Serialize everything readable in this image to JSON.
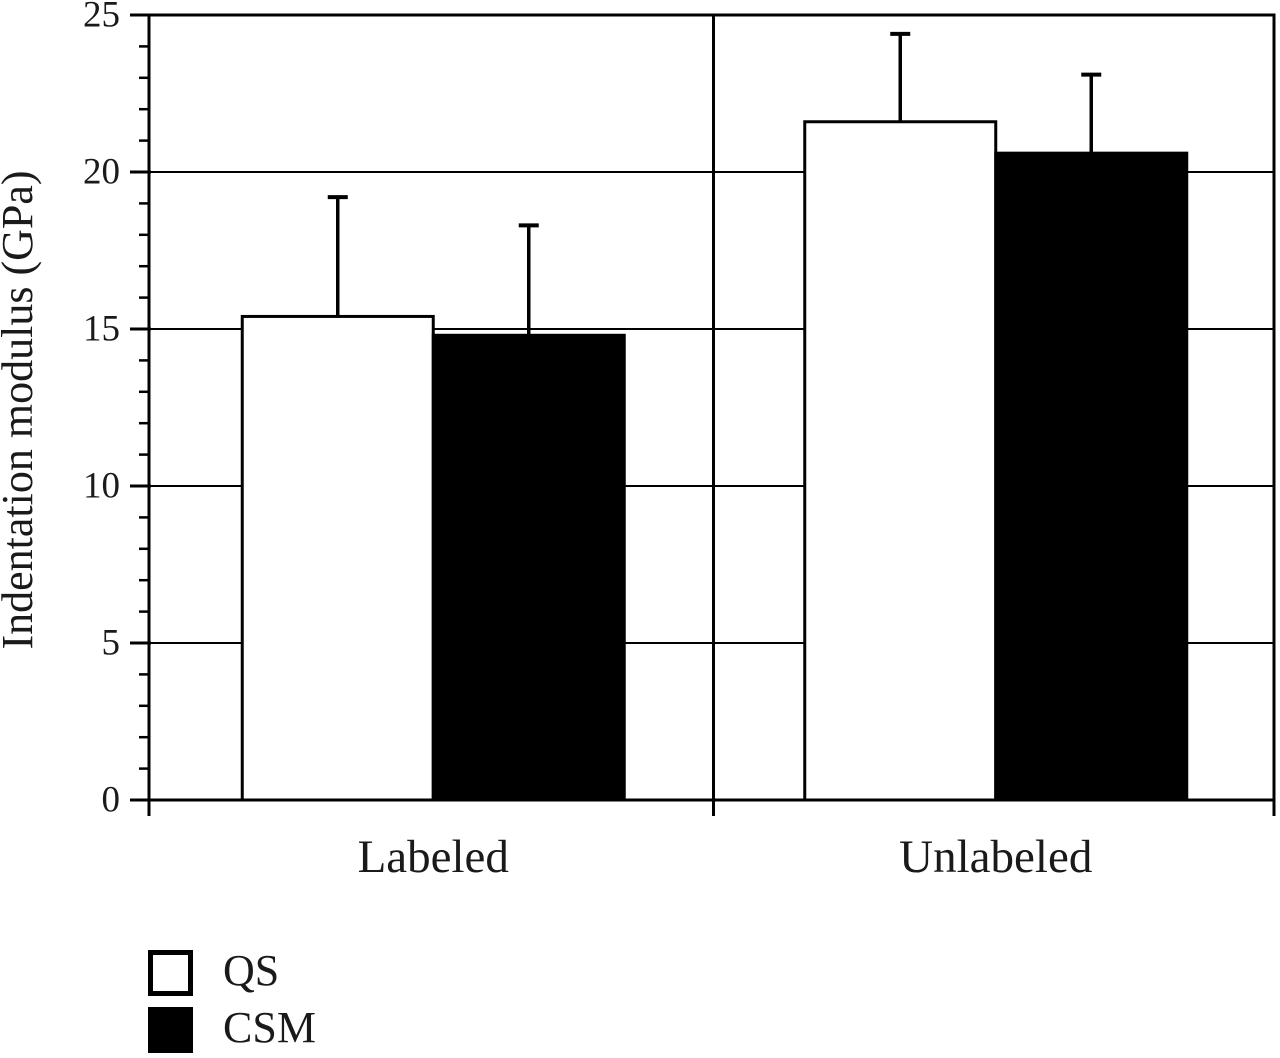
{
  "figure": {
    "background": "#ffffff",
    "ink": "#000000"
  },
  "chart_data": {
    "type": "bar",
    "title": "",
    "xlabel": "",
    "ylabel": "Indentation modulus (GPa)",
    "categories": [
      "Labeled",
      "Unlabeled"
    ],
    "series": [
      {
        "name": "QS",
        "fill": "#ffffff",
        "values": [
          15.4,
          21.6
        ],
        "errors_plus": [
          3.8,
          2.8
        ]
      },
      {
        "name": "CSM",
        "fill": "#000000",
        "values": [
          14.8,
          20.6
        ],
        "errors_plus": [
          3.5,
          2.5
        ]
      }
    ],
    "ylim": [
      0,
      25
    ],
    "ytick_major_step": 5,
    "ytick_minor_step": 1,
    "ytick_labels": [
      "0",
      "5",
      "10",
      "15",
      "20",
      "25"
    ],
    "grid_values": [
      5,
      10,
      15,
      20
    ],
    "grid": "horizontal-major",
    "error_direction": "up",
    "legend_position": "bottom-left",
    "bar_stroke": "#000000",
    "group_divider": true
  },
  "legend": {
    "items": [
      {
        "label": "QS",
        "fill": "#ffffff"
      },
      {
        "label": "CSM",
        "fill": "#000000"
      }
    ]
  }
}
